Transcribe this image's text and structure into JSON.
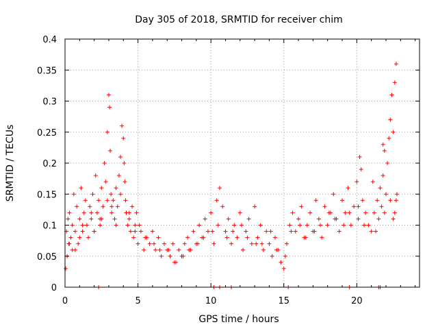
{
  "chart_data": {
    "type": "scatter",
    "title": "Day 305 of 2018, SRMTID for receiver chim",
    "xlabel": "GPS time / hours",
    "ylabel": "SRMTID / TECUs",
    "xlim": [
      0,
      24.3
    ],
    "ylim": [
      0,
      0.4
    ],
    "x_ticks": [
      0,
      5,
      10,
      15,
      20
    ],
    "x_tick_labels": [
      "0",
      "5",
      "10",
      "15",
      "20"
    ],
    "y_ticks": [
      0,
      0.05,
      0.1,
      0.15,
      0.2,
      0.25,
      0.3,
      0.35,
      0.4
    ],
    "y_tick_labels": [
      "0",
      "0.05",
      "0.1",
      "0.15",
      "0.2",
      "0.25",
      "0.3",
      "0.35",
      "0.4"
    ],
    "grid": true,
    "marker": "+",
    "color": "#ff0000",
    "series": [
      {
        "name": "SRMTID",
        "x": [
          0.05,
          0.1,
          0.15,
          0.2,
          0.25,
          0.3,
          0.4,
          0.5,
          0.6,
          0.7,
          0.8,
          0.9,
          1.0,
          1.1,
          1.2,
          1.3,
          1.4,
          1.5,
          1.6,
          1.7,
          1.8,
          1.9,
          2.0,
          2.1,
          2.2,
          2.3,
          2.4,
          2.5,
          2.6,
          2.7,
          2.8,
          2.9,
          3.0,
          3.05,
          3.1,
          3.15,
          3.2,
          3.3,
          3.4,
          3.5,
          3.6,
          3.7,
          3.8,
          3.9,
          4.0,
          4.05,
          4.1,
          4.15,
          4.2,
          4.3,
          4.4,
          4.5,
          4.6,
          4.7,
          4.8,
          4.9,
          5.0,
          5.2,
          5.4,
          5.6,
          5.8,
          6.0,
          6.2,
          6.4,
          6.6,
          6.8,
          7.0,
          7.2,
          7.4,
          7.6,
          7.8,
          8.0,
          8.2,
          8.4,
          8.6,
          8.8,
          9.0,
          9.2,
          9.4,
          9.6,
          9.8,
          10.0,
          10.2,
          10.4,
          10.6,
          10.8,
          11.0,
          11.2,
          11.4,
          11.6,
          11.8,
          12.0,
          12.2,
          12.4,
          12.6,
          12.8,
          13.0,
          13.2,
          13.4,
          13.6,
          13.8,
          14.0,
          14.2,
          14.4,
          14.6,
          14.8,
          15.0,
          15.2,
          15.4,
          15.6,
          15.8,
          16.0,
          16.2,
          16.4,
          16.6,
          16.8,
          17.0,
          17.2,
          17.4,
          17.6,
          17.8,
          18.0,
          18.2,
          18.4,
          18.6,
          18.8,
          19.0,
          19.2,
          19.4,
          19.6,
          19.8,
          20.0,
          20.1,
          20.2,
          20.3,
          20.4,
          20.6,
          20.8,
          21.0,
          21.2,
          21.4,
          21.5,
          21.6,
          21.7,
          21.8,
          21.9,
          22.0,
          22.1,
          22.2,
          22.3,
          22.4,
          22.5,
          22.6,
          22.7,
          22.75,
          0.3,
          0.7,
          1.2,
          1.8,
          2.4,
          2.9,
          3.5,
          4.2,
          4.8,
          5.5,
          6.5,
          7.5,
          8.5,
          9.5,
          10.5,
          11.5,
          12.5,
          13.5,
          14.5,
          15.5,
          16.5,
          17.5,
          18.5,
          19.5,
          20.5,
          21.3,
          21.9,
          22.5,
          22.7,
          0.5,
          1.0,
          1.5,
          2.0,
          2.5,
          3.2,
          3.8,
          4.4,
          5.1,
          6.1,
          7.1,
          8.1,
          9.1,
          10.1,
          11.1,
          12.1,
          13.1,
          14.1,
          15.1,
          16.1,
          17.1,
          18.1,
          19.1,
          20.1,
          21.1,
          21.8,
          22.3,
          22.6,
          2.3,
          10.2,
          10.6,
          11.4,
          15.3,
          19.5,
          21.5,
          21.6
        ],
        "y": [
          0.03,
          0.09,
          0.05,
          0.11,
          0.07,
          0.12,
          0.08,
          0.1,
          0.15,
          0.09,
          0.13,
          0.07,
          0.11,
          0.16,
          0.09,
          0.12,
          0.14,
          0.1,
          0.08,
          0.13,
          0.11,
          0.15,
          0.09,
          0.18,
          0.12,
          0.14,
          0.1,
          0.16,
          0.13,
          0.2,
          0.17,
          0.25,
          0.31,
          0.29,
          0.22,
          0.15,
          0.12,
          0.14,
          0.11,
          0.16,
          0.13,
          0.18,
          0.21,
          0.26,
          0.24,
          0.2,
          0.17,
          0.14,
          0.12,
          0.1,
          0.11,
          0.09,
          0.13,
          0.08,
          0.1,
          0.12,
          0.07,
          0.09,
          0.06,
          0.08,
          0.07,
          0.09,
          0.06,
          0.08,
          0.05,
          0.07,
          0.06,
          0.05,
          0.07,
          0.04,
          0.06,
          0.05,
          0.07,
          0.08,
          0.06,
          0.09,
          0.07,
          0.1,
          0.08,
          0.11,
          0.09,
          0.12,
          0.07,
          0.14,
          0.16,
          0.13,
          0.09,
          0.11,
          0.07,
          0.1,
          0.08,
          0.12,
          0.06,
          0.09,
          0.11,
          0.07,
          0.13,
          0.08,
          0.1,
          0.06,
          0.09,
          0.07,
          0.05,
          0.08,
          0.06,
          0.04,
          0.03,
          0.07,
          0.1,
          0.12,
          0.09,
          0.11,
          0.13,
          0.08,
          0.1,
          0.12,
          0.09,
          0.14,
          0.11,
          0.08,
          0.13,
          0.1,
          0.12,
          0.15,
          0.11,
          0.09,
          0.14,
          0.12,
          0.16,
          0.1,
          0.13,
          0.17,
          0.11,
          0.21,
          0.19,
          0.14,
          0.12,
          0.1,
          0.09,
          0.12,
          0.14,
          0.11,
          0.16,
          0.13,
          0.18,
          0.22,
          0.15,
          0.2,
          0.24,
          0.27,
          0.31,
          0.25,
          0.33,
          0.36,
          0.15,
          0.07,
          0.06,
          0.1,
          0.12,
          0.11,
          0.14,
          0.1,
          0.12,
          0.09,
          0.08,
          0.06,
          0.04,
          0.06,
          0.08,
          0.1,
          0.09,
          0.08,
          0.07,
          0.06,
          0.09,
          0.08,
          0.1,
          0.11,
          0.12,
          0.1,
          0.09,
          0.12,
          0.11,
          0.14,
          0.06,
          0.08,
          0.1,
          0.09,
          0.11,
          0.13,
          0.15,
          0.12,
          0.1,
          0.07,
          0.06,
          0.05,
          0.07,
          0.09,
          0.08,
          0.1,
          0.07,
          0.09,
          0.05,
          0.1,
          0.09,
          0.12,
          0.1,
          0.13,
          0.17,
          0.23,
          0.14,
          0.12,
          0.0,
          0.0,
          0.0,
          0.0,
          0.0,
          0.0,
          0.0,
          0.0
        ]
      }
    ]
  }
}
